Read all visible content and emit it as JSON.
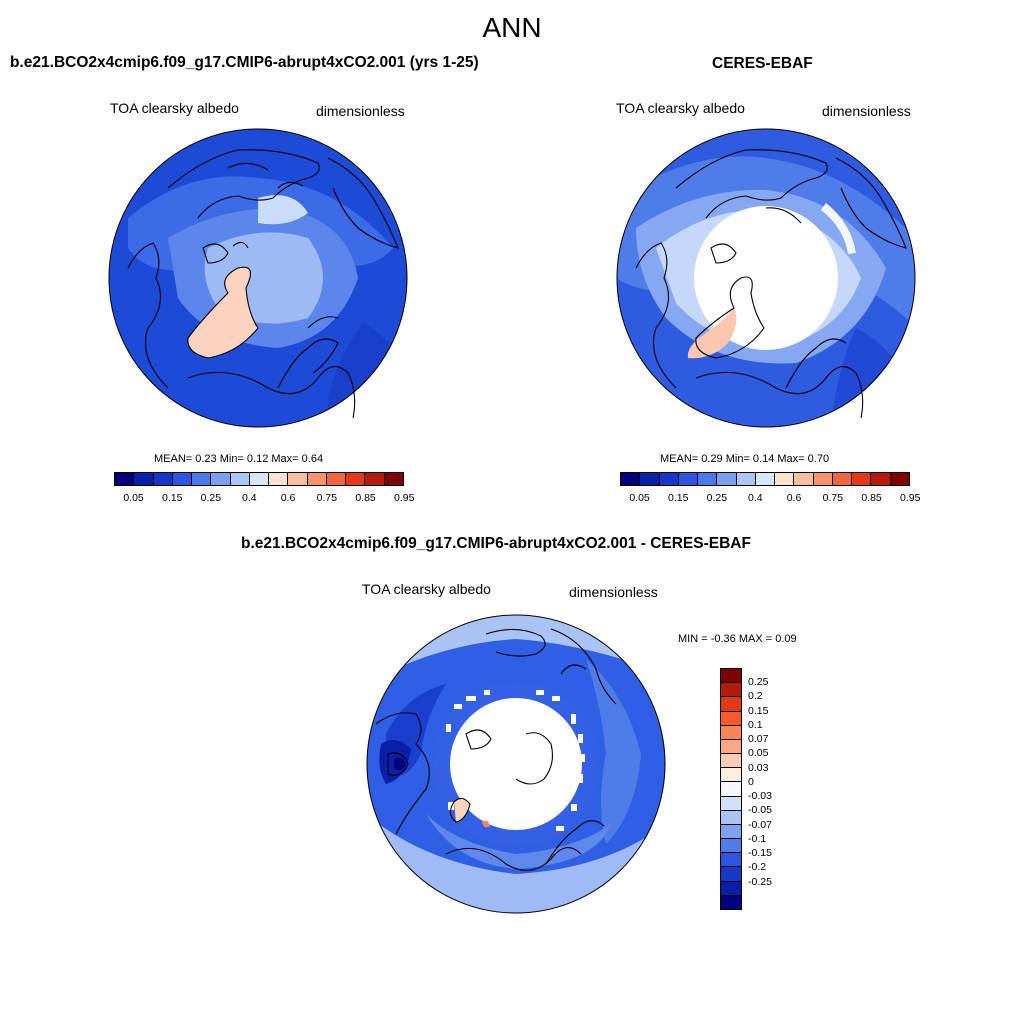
{
  "title": "ANN",
  "panels": {
    "model": {
      "title": "b.e21.BCO2x4cmip6.f09_g17.CMIP6-abrupt4xCO2.001 (yrs 1-25)",
      "left_label": "TOA clearsky albedo",
      "right_label": "dimensionless",
      "stats": "MEAN=   0.23  Min=   0.12  Max=   0.64",
      "mean": 0.23,
      "min": 0.12,
      "max": 0.64
    },
    "obs": {
      "title": "CERES-EBAF",
      "left_label": "TOA clearsky albedo",
      "right_label": "dimensionless",
      "stats": "MEAN=   0.29  Min=   0.14  Max=   0.70",
      "mean": 0.29,
      "min": 0.14,
      "max": 0.7
    },
    "diff": {
      "title": "b.e21.BCO2x4cmip6.f09_g17.CMIP6-abrupt4xCO2.001 - CERES-EBAF",
      "left_label": "TOA clearsky albedo",
      "right_label": "dimensionless",
      "stats": "MIN =  -0.36 MAX =   0.09",
      "min": -0.36,
      "max": 0.09
    }
  },
  "colorbar_abs": {
    "labels": [
      "0.05",
      "0.15",
      "0.25",
      "0.4",
      "0.6",
      "0.75",
      "0.85",
      "0.95"
    ],
    "colors": [
      "#00007f",
      "#0a1fa8",
      "#1638c8",
      "#2a56e2",
      "#4a79ec",
      "#7ba0f1",
      "#abc6f6",
      "#d6e6fb",
      "#fde3cf",
      "#fbbf9f",
      "#f7946b",
      "#f0663f",
      "#e23a17",
      "#b51b06",
      "#7f0000"
    ]
  },
  "colorbar_diff": {
    "labels": [
      "0.25",
      "0.2",
      "0.15",
      "0.1",
      "0.07",
      "0.05",
      "0.03",
      "0",
      "-0.03",
      "-0.05",
      "-0.07",
      "-0.1",
      "-0.15",
      "-0.2",
      "-0.25"
    ],
    "colors": [
      "#7f0000",
      "#b51b06",
      "#e23a17",
      "#f75a2a",
      "#f8855a",
      "#faa886",
      "#fccbb2",
      "#fdece0",
      "#f4f8fe",
      "#cfe0fa",
      "#a9c3f5",
      "#7ea2f0",
      "#4f7ce9",
      "#2a56e2",
      "#1638c8",
      "#0a1fa8",
      "#00007f"
    ]
  }
}
